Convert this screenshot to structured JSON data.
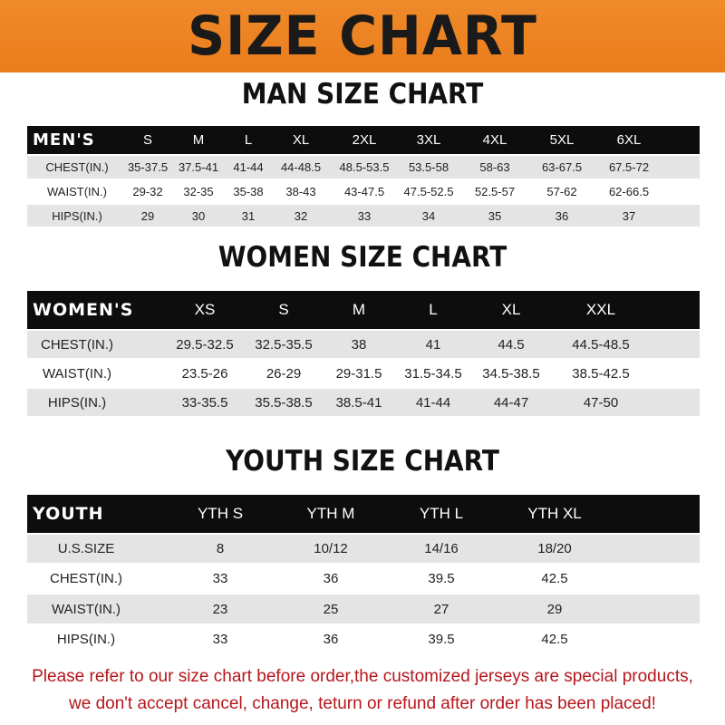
{
  "banner": {
    "title": "SIZE CHART"
  },
  "men": {
    "title": "MAN SIZE CHART",
    "label": "MEN'S",
    "sizes": [
      "S",
      "M",
      "L",
      "XL",
      "2XL",
      "3XL",
      "4XL",
      "5XL",
      "6XL"
    ],
    "rows": [
      {
        "label": "CHEST(IN.)",
        "values": [
          "35-37.5",
          "37.5-41",
          "41-44",
          "44-48.5",
          "48.5-53.5",
          "53.5-58",
          "58-63",
          "63-67.5",
          "67.5-72"
        ]
      },
      {
        "label": "WAIST(IN.)",
        "values": [
          "29-32",
          "32-35",
          "35-38",
          "38-43",
          "43-47.5",
          "47.5-52.5",
          "52.5-57",
          "57-62",
          "62-66.5"
        ]
      },
      {
        "label": "HIPS(IN.)",
        "values": [
          "29",
          "30",
          "31",
          "32",
          "33",
          "34",
          "35",
          "36",
          "37"
        ]
      }
    ]
  },
  "women": {
    "title": "WOMEN SIZE CHART",
    "label": "WOMEN'S",
    "sizes": [
      "XS",
      "S",
      "M",
      "L",
      "XL",
      "XXL"
    ],
    "rows": [
      {
        "label": "CHEST(IN.)",
        "values": [
          "29.5-32.5",
          "32.5-35.5",
          "38",
          "41",
          "44.5",
          "44.5-48.5"
        ]
      },
      {
        "label": "WAIST(IN.)",
        "values": [
          "23.5-26",
          "26-29",
          "29-31.5",
          "31.5-34.5",
          "34.5-38.5",
          "38.5-42.5"
        ]
      },
      {
        "label": "HIPS(IN.)",
        "values": [
          "33-35.5",
          "35.5-38.5",
          "38.5-41",
          "41-44",
          "44-47",
          "47-50"
        ]
      }
    ]
  },
  "youth": {
    "title": "YOUTH SIZE CHART",
    "label": "YOUTH",
    "sizes": [
      "YTH S",
      "YTH M",
      "YTH L",
      "YTH XL"
    ],
    "rows": [
      {
        "label": "U.S.SIZE",
        "values": [
          "8",
          "10/12",
          "14/16",
          "18/20"
        ]
      },
      {
        "label": "CHEST(IN.)",
        "values": [
          "33",
          "36",
          "39.5",
          "42.5"
        ]
      },
      {
        "label": "WAIST(IN.)",
        "values": [
          "23",
          "25",
          "27",
          "29"
        ]
      },
      {
        "label": "HIPS(IN.)",
        "values": [
          "33",
          "36",
          "39.5",
          "42.5"
        ]
      }
    ]
  },
  "notice": {
    "line1": "Please refer to our size chart before order,the customized jerseys are special products,",
    "line2": "we don't accept cancel, change, teturn or refund after order has been placed!"
  },
  "colors": {
    "banner": "#ee8423",
    "header": "#0d0d0d",
    "stripe": "#e4e4e4",
    "notice": "#b5161b"
  }
}
